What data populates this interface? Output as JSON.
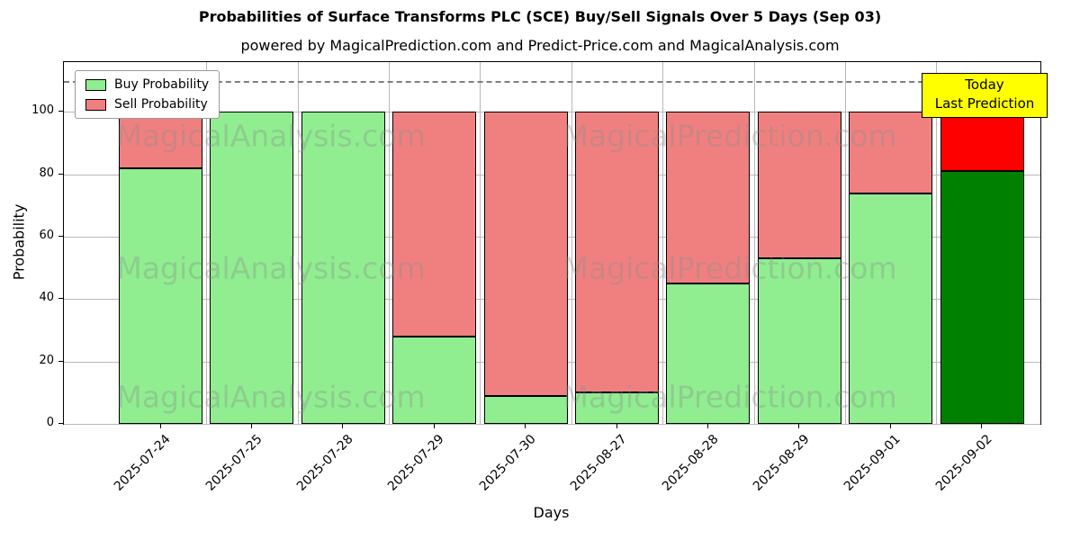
{
  "chart_data": {
    "type": "bar",
    "stacked": true,
    "title": "Probabilities of Surface Transforms PLC (SCE) Buy/Sell Signals Over 5 Days (Sep 03)",
    "subtitle": "powered by MagicalPrediction.com and Predict-Price.com and MagicalAnalysis.com",
    "xlabel": "Days",
    "ylabel": "Probability",
    "categories": [
      "2025-07-24",
      "2025-07-25",
      "2025-07-28",
      "2025-07-29",
      "2025-07-30",
      "2025-08-27",
      "2025-08-28",
      "2025-08-29",
      "2025-09-01",
      "2025-09-02"
    ],
    "series": [
      {
        "name": "Buy Probability",
        "color": "#90ee90",
        "values": [
          82,
          100,
          100,
          28,
          9,
          10,
          45,
          53,
          74,
          81
        ]
      },
      {
        "name": "Sell Probability",
        "color": "#f08080",
        "values": [
          18,
          0,
          0,
          72,
          91,
          90,
          55,
          47,
          26,
          19
        ]
      }
    ],
    "highlight_last_bar": {
      "buy_color": "#008000",
      "sell_color": "#ff0000"
    },
    "ylim": [
      0,
      116
    ],
    "yticks": [
      0,
      20,
      40,
      60,
      80,
      100
    ],
    "dashed_guide_y": 110,
    "grid": true,
    "legend_position": "upper-left"
  },
  "annotation": {
    "line1": "Today",
    "line2": "Last Prediction",
    "bg": "#ffff00"
  },
  "watermarks": {
    "left": "MagicalAnalysis.com",
    "right": "MagicalPrediction.com"
  }
}
